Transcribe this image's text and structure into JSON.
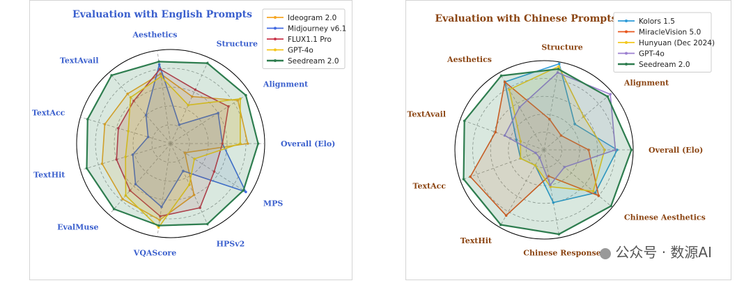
{
  "chart_data": [
    {
      "type": "radar",
      "title": "Evaluation with English Prompts",
      "title_color": "#3a5fcd",
      "label_color": "#3a5fcd",
      "axes": [
        "Overall (Elo)",
        "Alignment",
        "Structure",
        "Aesthetics",
        "TextAvail",
        "TextAcc",
        "TextHit",
        "EvalMuse",
        "VQAScore",
        "HPSv2",
        "MPS"
      ],
      "rlim": [
        0,
        1
      ],
      "legend_position": "top-right",
      "series": [
        {
          "name": "Ideogram 2.0",
          "color": "#f5a623",
          "values": [
            0.82,
            0.85,
            0.55,
            0.75,
            0.7,
            0.73,
            0.76,
            0.78,
            0.82,
            0.6,
            0.18
          ]
        },
        {
          "name": "Midjourney v6.1",
          "color": "#4169e1",
          "values": [
            0.55,
            0.6,
            0.22,
            0.85,
            0.4,
            0.25,
            0.42,
            0.57,
            0.68,
            0.32,
            0.95
          ]
        },
        {
          "name": "FLUX1.1 Pro",
          "color": "#c8334a",
          "values": [
            0.55,
            0.73,
            0.63,
            0.8,
            0.6,
            0.58,
            0.6,
            0.66,
            0.78,
            0.75,
            0.55
          ]
        },
        {
          "name": "GPT-4o",
          "color": "#f5c518",
          "values": [
            0.74,
            0.88,
            0.45,
            0.72,
            0.65,
            0.47,
            0.5,
            0.73,
            0.9,
            0.48,
            0.3
          ]
        },
        {
          "name": "Seedream 2.0",
          "color": "#2e7d4f",
          "values": [
            0.93,
            0.95,
            0.94,
            0.88,
            0.96,
            0.92,
            0.93,
            0.92,
            0.88,
            0.94,
            0.92
          ]
        }
      ]
    },
    {
      "type": "radar",
      "title": "Evaluation with Chinese Prompts",
      "title_color": "#8b4513",
      "label_color": "#8b4513",
      "axes": [
        "Overall (Elo)",
        "Alignment",
        "Structure",
        "Aesthetics",
        "TextAvail",
        "TextAcc",
        "TextHit",
        "Chinese Response",
        "Chinese Aesthetics"
      ],
      "rlim": [
        0,
        1
      ],
      "legend_position": "top-right",
      "series": [
        {
          "name": "Kolors 1.5",
          "color": "#2e9bd8",
          "values": [
            0.82,
            0.45,
            0.98,
            0.88,
            0.33,
            0.28,
            0.2,
            0.6,
            0.75
          ]
        },
        {
          "name": "MiracleVision 5.0",
          "color": "#e8561c",
          "values": [
            0.5,
            0.25,
            0.35,
            0.88,
            0.58,
            0.88,
            0.85,
            0.3,
            0.8
          ]
        },
        {
          "name": "Hunyuan (Dec 2024)",
          "color": "#f2c81e",
          "values": [
            0.68,
            0.58,
            0.95,
            0.78,
            0.28,
            0.28,
            0.2,
            0.42,
            0.72
          ]
        },
        {
          "name": "GPT-4o",
          "color": "#9b7fd0",
          "values": [
            0.8,
            0.97,
            0.88,
            0.55,
            0.47,
            0.1,
            0.1,
            0.4,
            0.3
          ]
        },
        {
          "name": "Seedream 2.0",
          "color": "#2e7d4f",
          "values": [
            0.98,
            0.93,
            0.92,
            0.96,
            0.95,
            0.96,
            0.97,
            0.96,
            0.98
          ]
        }
      ]
    }
  ],
  "watermark": "公众号 · 数源AI"
}
